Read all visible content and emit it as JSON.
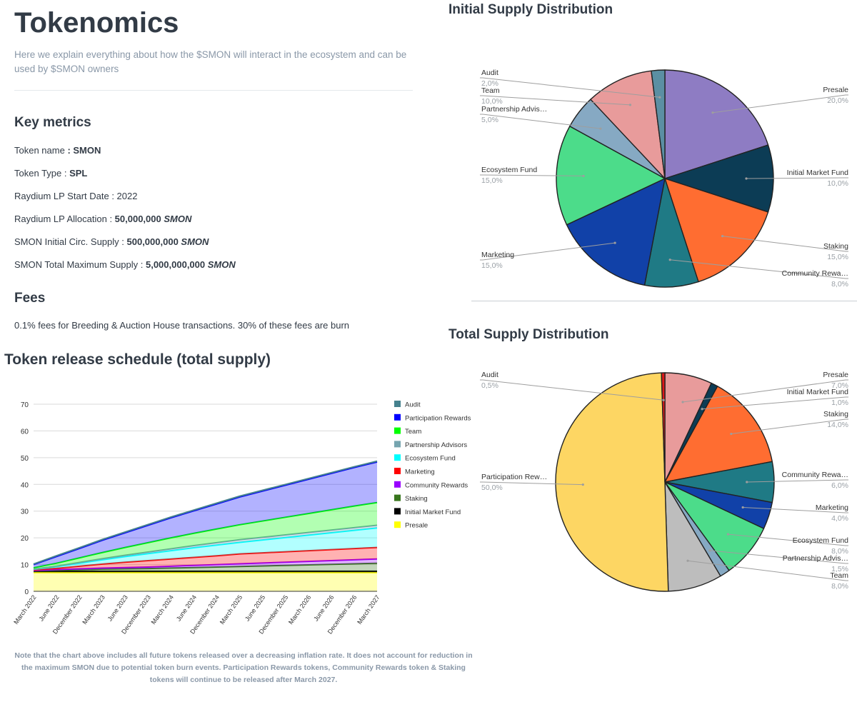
{
  "page": {
    "title": "Tokenomics",
    "intro": "Here we explain everything about how the $SMON will interact in the ecosystem and can be used by $SMON owners",
    "key_metrics_heading": "Key metrics",
    "metrics": [
      {
        "label": "Token name ",
        "value": ": SMON",
        "unit": ""
      },
      {
        "label": "Token Type : ",
        "value": "SPL",
        "unit": ""
      },
      {
        "label": "Raydium LP Start Date : 2022",
        "value": "",
        "unit": ""
      },
      {
        "label": "Raydium LP Allocation : ",
        "value": "50,000,000",
        "unit": "SMON"
      },
      {
        "label": "SMON Initial Circ. Supply : ",
        "value": "500,000,000",
        "unit": "SMON"
      },
      {
        "label": "SMON Total Maximum Supply : ",
        "value": "5,000,000,000",
        "unit": "SMON"
      }
    ],
    "fees_heading": "Fees",
    "fees_text": "0.1% fees for Breeding & Auction House transactions. 30% of these fees are burn",
    "schedule_heading": "Token release schedule (total supply)",
    "note": "Note that the chart above includes all future tokens released over a decreasing inflation rate. It does not account for reduction in the maximum SMON due to potential token burn events. Participation Rewards tokens, Community Rewards token & Staking tokens will continue to be released after March 2027."
  },
  "chart_data": [
    {
      "type": "area",
      "title": "Token release schedule (total supply)",
      "stacked": true,
      "x": [
        "March 2022",
        "June 2022",
        "December 2022",
        "March 2023",
        "June 2023",
        "December 2023",
        "March 2024",
        "June 2024",
        "December 2024",
        "March 2025",
        "June 2025",
        "December 2025",
        "March 2026",
        "June 2026",
        "December 2026",
        "March 2027"
      ],
      "ylim": [
        0,
        70
      ],
      "yticks": [
        0,
        10,
        20,
        30,
        40,
        50,
        60,
        70
      ],
      "legend": [
        "Audit",
        "Participation Rewards",
        "Team",
        "Partnership Advisors",
        "Ecosystem Fund",
        "Marketing",
        "Community Rewards",
        "Staking",
        "Initial Market Fund",
        "Presale"
      ],
      "series": [
        {
          "name": "Presale",
          "color": "#ffff00",
          "values": [
            7,
            7,
            7,
            7,
            7,
            7,
            7,
            7,
            7,
            7,
            7,
            7,
            7,
            7,
            7,
            7
          ]
        },
        {
          "name": "Initial Market Fund",
          "color": "#000000",
          "values": [
            0.5,
            0.5,
            0.5,
            0.5,
            0.5,
            0.5,
            0.5,
            0.5,
            0.5,
            0.5,
            0.5,
            0.5,
            0.5,
            0.5,
            0.5,
            0.5
          ]
        },
        {
          "name": "Staking",
          "color": "#38761d",
          "values": [
            0.2,
            0.4,
            0.6,
            0.8,
            0.9,
            1.0,
            1.2,
            1.4,
            1.6,
            1.8,
            2.0,
            2.2,
            2.4,
            2.6,
            2.8,
            3.0
          ]
        },
        {
          "name": "Community Rewards",
          "color": "#9900ff",
          "values": [
            0.1,
            0.2,
            0.3,
            0.4,
            0.5,
            0.6,
            0.7,
            0.8,
            0.9,
            1.0,
            1.1,
            1.2,
            1.3,
            1.4,
            1.5,
            1.6
          ]
        },
        {
          "name": "Marketing",
          "color": "#ff0000",
          "values": [
            0.2,
            0.5,
            1.0,
            1.5,
            2.0,
            2.4,
            2.7,
            3.0,
            3.3,
            3.7,
            3.8,
            3.9,
            4.0,
            4.1,
            4.2,
            4.3
          ]
        },
        {
          "name": "Ecosystem Fund",
          "color": "#00ffff",
          "values": [
            0.2,
            0.6,
            1.1,
            1.6,
            2.1,
            2.6,
            3.1,
            3.6,
            4.0,
            4.3,
            4.8,
            5.3,
            5.8,
            6.3,
            6.8,
            7.3
          ]
        },
        {
          "name": "Partnership Advisors",
          "color": "#76a5af",
          "values": [
            0.1,
            0.2,
            0.3,
            0.4,
            0.5,
            0.6,
            0.7,
            0.8,
            0.9,
            1.0,
            1.0,
            1.0,
            1.0,
            1.0,
            1.0,
            1.0
          ]
        },
        {
          "name": "Team",
          "color": "#00ff00",
          "values": [
            0.5,
            1.1,
            1.7,
            2.3,
            2.9,
            3.5,
            4.1,
            4.6,
            5.1,
            5.6,
            6.1,
            6.6,
            7.1,
            7.6,
            8.1,
            8.5
          ]
        },
        {
          "name": "Participation Rewards",
          "color": "#0000ff",
          "values": [
            1.2,
            2.5,
            3.5,
            4.6,
            5.5,
            6.5,
            7.5,
            8.4,
            9.4,
            10.4,
            11.2,
            12.0,
            12.8,
            13.6,
            14.4,
            15.2
          ]
        },
        {
          "name": "Audit",
          "color": "#45818e",
          "values": [
            0.2,
            0.3,
            0.3,
            0.3,
            0.3,
            0.3,
            0.3,
            0.3,
            0.3,
            0.3,
            0.3,
            0.3,
            0.3,
            0.3,
            0.3,
            0.3
          ]
        }
      ]
    },
    {
      "type": "pie",
      "title": "Initial Supply Distribution",
      "slices": [
        {
          "label": "Presale",
          "value": 20.0,
          "display": "20,0%",
          "color": "#8e7cc3",
          "side": "right"
        },
        {
          "label": "Initial Market Fund",
          "value": 10.0,
          "display": "10,0%",
          "color": "#0c3c55",
          "side": "right"
        },
        {
          "label": "Staking",
          "value": 15.0,
          "display": "15,0%",
          "color": "#ff6d31",
          "side": "right"
        },
        {
          "label": "Community Rewa…",
          "value": 8.0,
          "display": "8,0%",
          "color": "#1f7a85",
          "side": "right"
        },
        {
          "label": "Marketing",
          "value": 15.0,
          "display": "15,0%",
          "color": "#1141a8",
          "side": "left"
        },
        {
          "label": "Ecosystem Fund",
          "value": 15.0,
          "display": "15,0%",
          "color": "#4cdc8a",
          "side": "left"
        },
        {
          "label": "Partnership Advis…",
          "value": 5.0,
          "display": "5,0%",
          "color": "#86a9c3",
          "side": "left"
        },
        {
          "label": "Team",
          "value": 10.0,
          "display": "10,0%",
          "color": "#e89b9b",
          "side": "left"
        },
        {
          "label": "Audit",
          "value": 2.0,
          "display": "2,0%",
          "color": "#5b8fa3",
          "side": "left"
        }
      ]
    },
    {
      "type": "pie",
      "title": "Total Supply Distribution",
      "slices": [
        {
          "label": "Presale",
          "value": 7.0,
          "display": "7,0%",
          "color": "#e89b9b",
          "side": "right"
        },
        {
          "label": "Initial Market Fund",
          "value": 1.0,
          "display": "1,0%",
          "color": "#0c3c55",
          "side": "right"
        },
        {
          "label": "Staking",
          "value": 14.0,
          "display": "14,0%",
          "color": "#ff6d31",
          "side": "right"
        },
        {
          "label": "Community Rewa…",
          "value": 6.0,
          "display": "6,0%",
          "color": "#1f7a85",
          "side": "right"
        },
        {
          "label": "Marketing",
          "value": 4.0,
          "display": "4,0%",
          "color": "#1141a8",
          "side": "right"
        },
        {
          "label": "Ecosystem Fund",
          "value": 8.0,
          "display": "8,0%",
          "color": "#4cdc8a",
          "side": "right"
        },
        {
          "label": "Partnership Advis…",
          "value": 1.5,
          "display": "1,5%",
          "color": "#86a9c3",
          "side": "right"
        },
        {
          "label": "Team",
          "value": 8.0,
          "display": "8,0%",
          "color": "#bdbdbd",
          "side": "right"
        },
        {
          "label": "Participation Rew…",
          "value": 50.0,
          "display": "50,0%",
          "color": "#fdd663",
          "side": "left"
        },
        {
          "label": "Audit",
          "value": 0.5,
          "display": "0,5%",
          "color": "#dd1a1a",
          "side": "left"
        }
      ]
    }
  ]
}
